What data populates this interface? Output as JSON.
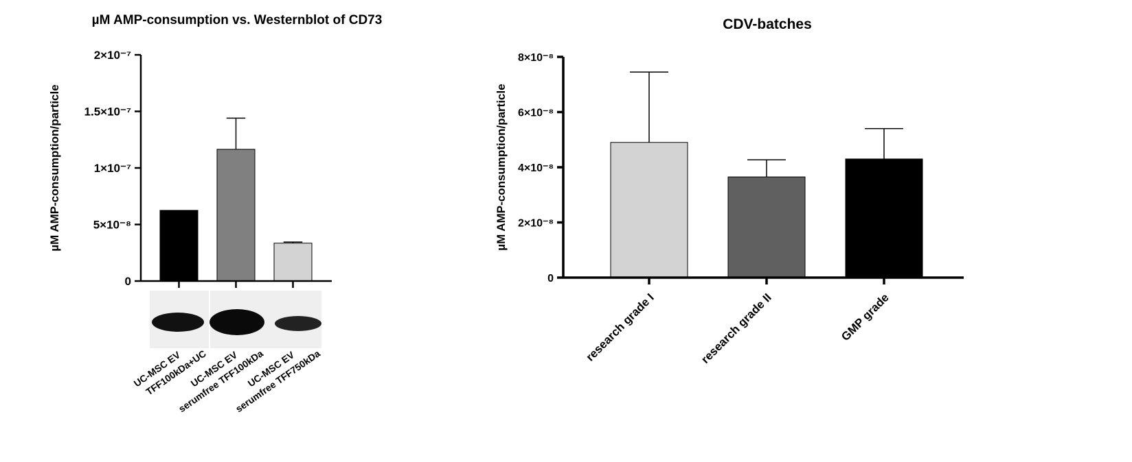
{
  "chart_data": [
    {
      "type": "bar",
      "title": "µM AMP-consumption vs. Westernblot of CD73",
      "y_label": "µM AMP-consumption/particle",
      "categories": [
        [
          "UC-MSC EV",
          "TFF100kDa+UC"
        ],
        [
          "UC-MSC EV",
          "serumfree TFF100kDa"
        ],
        [
          "UC-MSC EV",
          "serumfree TFF750kDa"
        ]
      ],
      "values": [
        6.25e-08,
        1.165e-07,
        3.35e-08
      ],
      "errors": [
        null,
        2.75e-08,
        1e-09
      ],
      "colors": [
        "#000000",
        "#808080",
        "#d3d3d3"
      ],
      "ylim": [
        0,
        2e-07
      ],
      "yticks": [
        0,
        {
          "value": 5e-08,
          "label": "5×10⁻⁸"
        },
        {
          "value": 1e-07,
          "label": "1×10⁻⁷"
        },
        {
          "value": 1.5e-07,
          "label": "1.5×10⁻⁷"
        },
        {
          "value": 2e-07,
          "label": "2×10⁻⁷"
        }
      ]
    },
    {
      "type": "bar",
      "title": "CDV-batches",
      "y_label": "µM AMP-consumption/particle",
      "categories": [
        [
          "research grade I"
        ],
        [
          "research grade II"
        ],
        [
          "GMP grade"
        ]
      ],
      "values": [
        4.9e-08,
        3.65e-08,
        4.3e-08
      ],
      "errors": [
        2.55e-08,
        6.2e-09,
        1.1e-08
      ],
      "colors": [
        "#d3d3d3",
        "#606060",
        "#000000"
      ],
      "ylim": [
        0,
        8e-08
      ],
      "yticks": [
        0,
        {
          "value": 2e-08,
          "label": "2×10⁻⁸"
        },
        {
          "value": 4e-08,
          "label": "4×10⁻⁸"
        },
        {
          "value": 6e-08,
          "label": "6×10⁻⁸"
        },
        {
          "value": 8e-08,
          "label": "8×10⁻⁸"
        }
      ]
    }
  ]
}
